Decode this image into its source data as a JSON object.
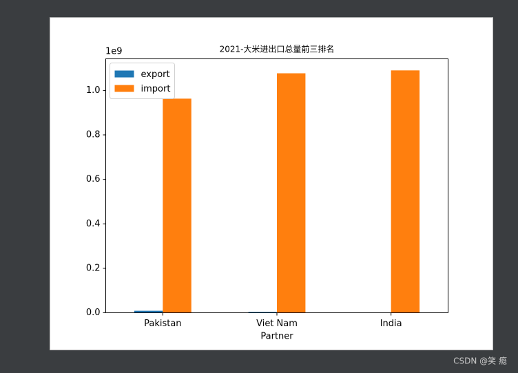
{
  "chart_data": {
    "type": "bar",
    "title": "2021-大米进出口总量前三排名",
    "x_label": "Partner",
    "y_offset_label": "1e9",
    "categories": [
      "Pakistan",
      "Viet Nam",
      "India"
    ],
    "series": [
      {
        "name": "export",
        "color": "#1f77b4",
        "values": [
          0.009,
          0.004,
          0.001
        ]
      },
      {
        "name": "import",
        "color": "#ff7f0e",
        "values": [
          0.963,
          1.077,
          1.09
        ]
      }
    ],
    "ylim": [
      0,
      1.142
    ],
    "yticks": [
      {
        "value": 0,
        "label": "0.0"
      },
      0.2,
      0.4,
      0.6,
      0.8,
      {
        "value": 1,
        "label": "1.0"
      }
    ],
    "legend": "upper left",
    "grid": false
  },
  "watermark": "CSDN @笑 瘾"
}
